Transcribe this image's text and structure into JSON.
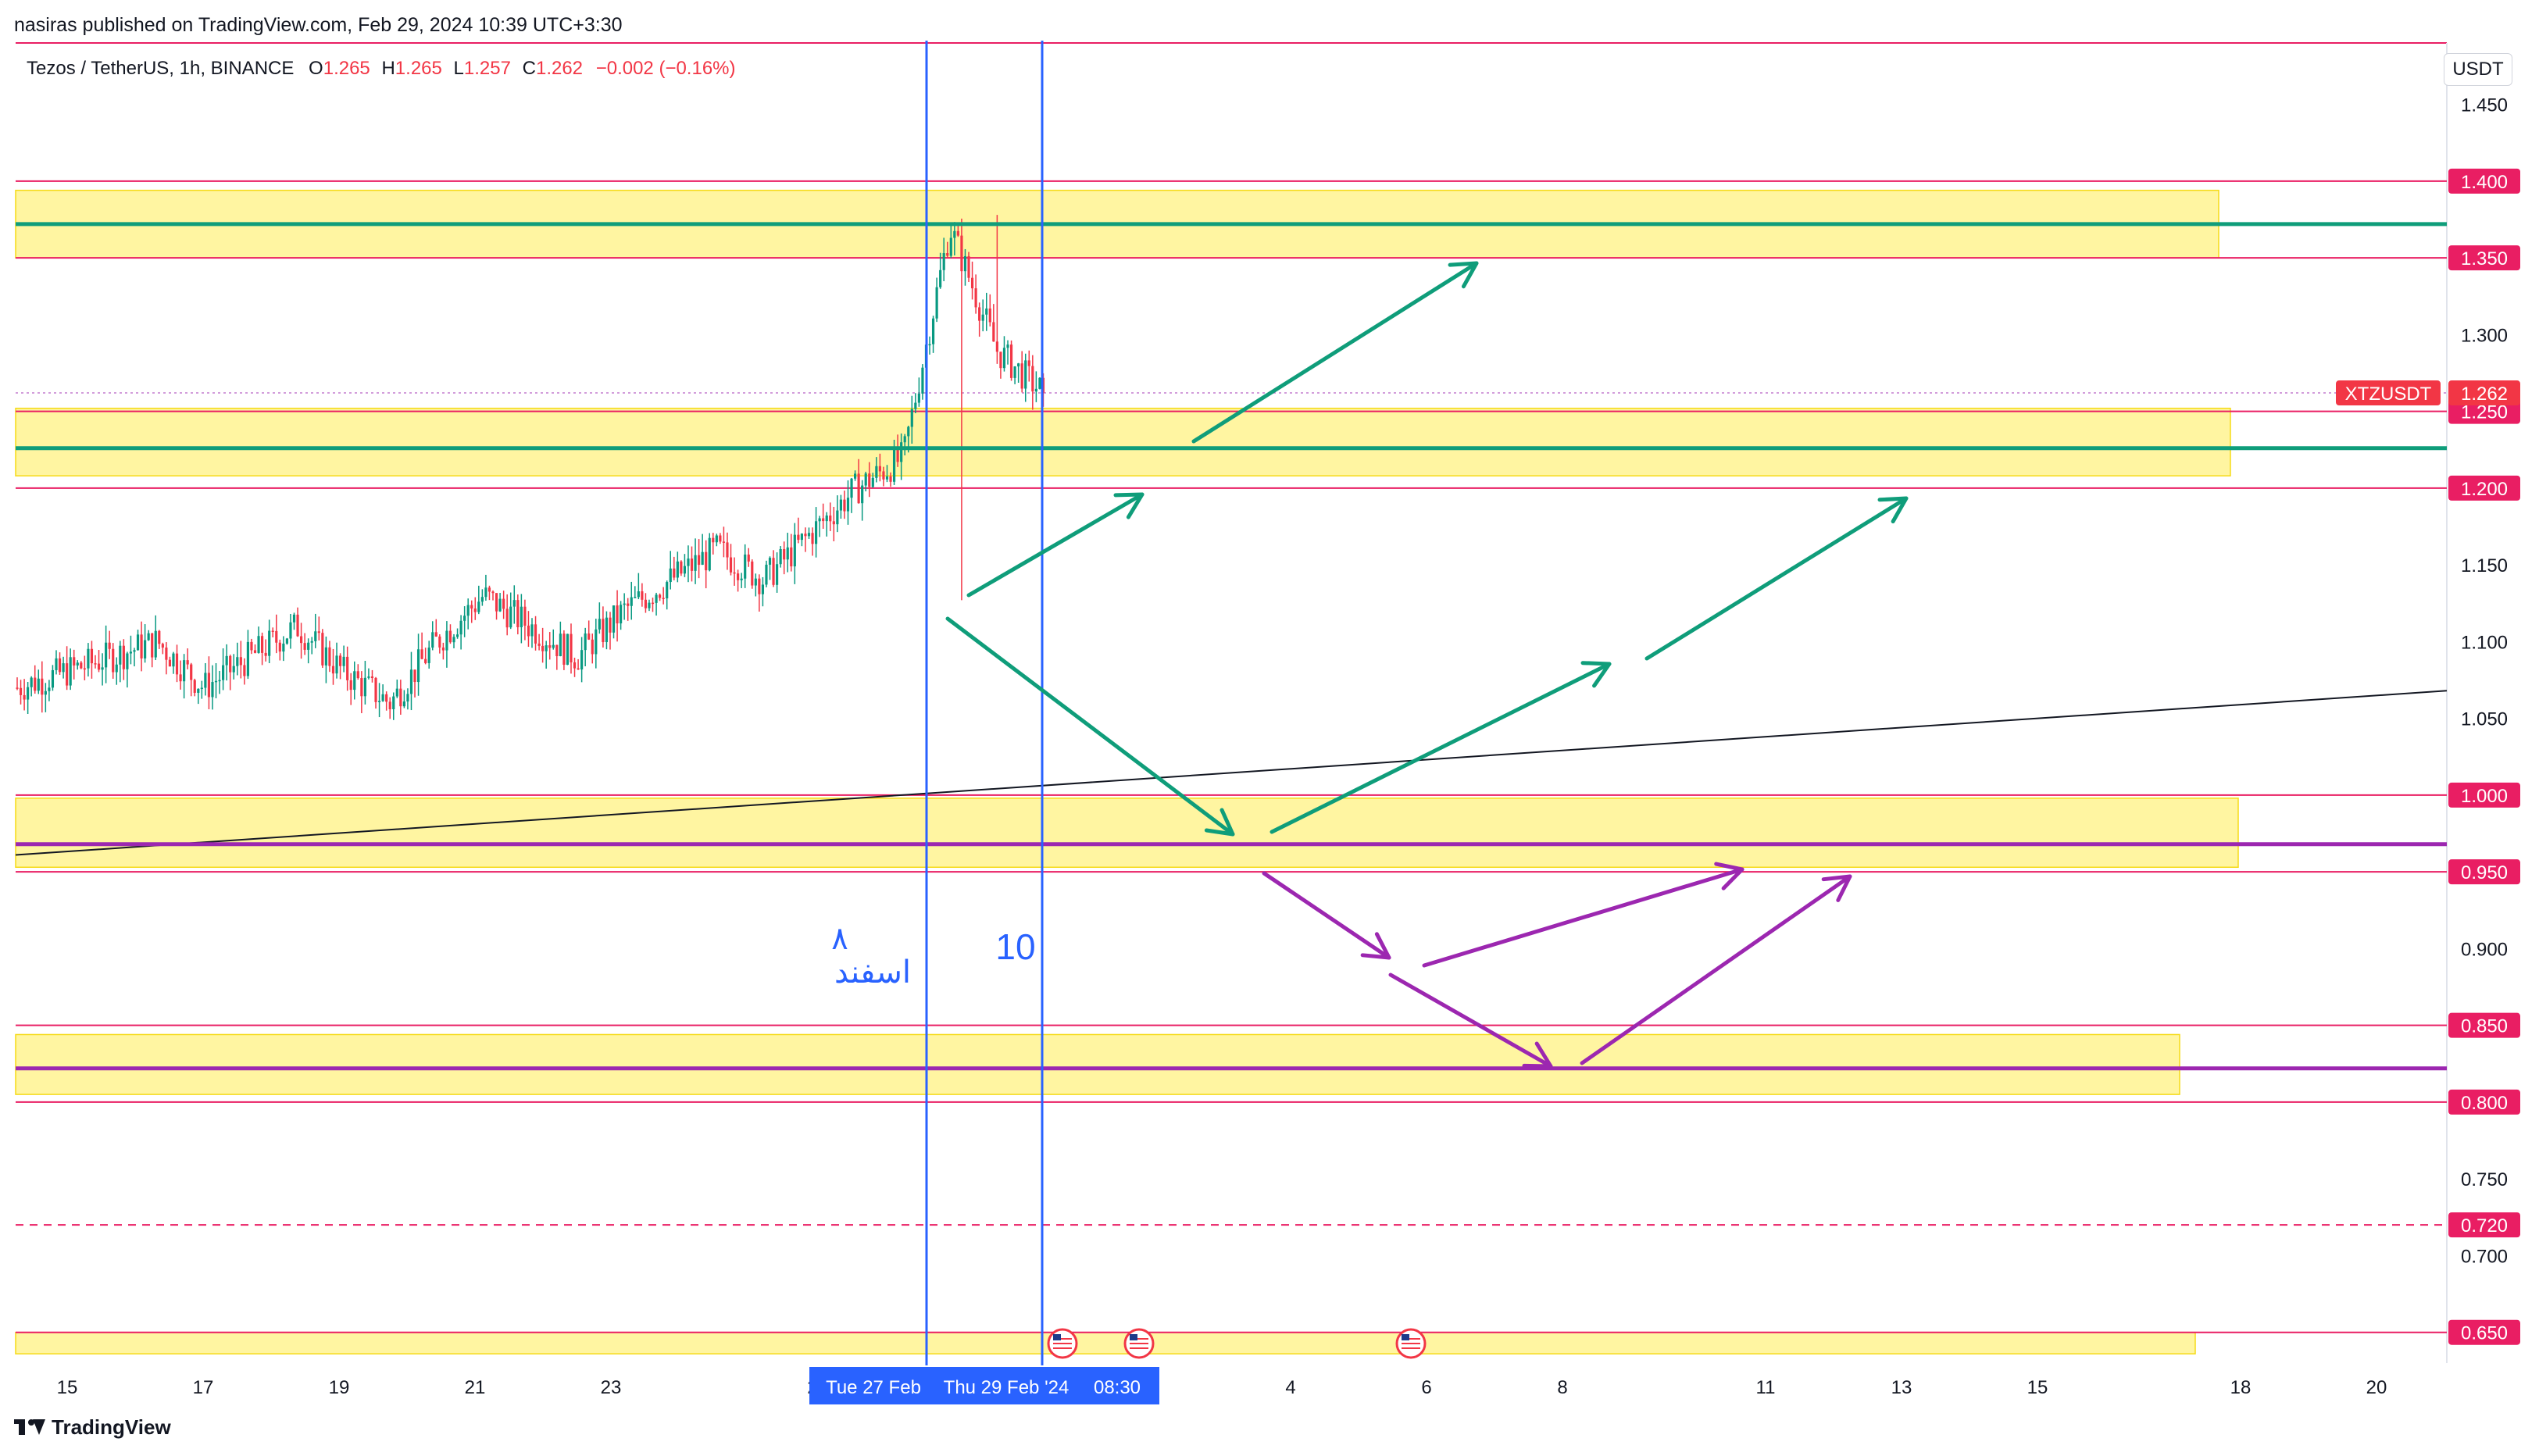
{
  "header": {
    "publisher": "nasiras published on TradingView.com, Feb 29, 2024 10:39 UTC+3:30",
    "symbol": "Tezos / TetherUS, 1h, BINANCE",
    "o_label": "O",
    "o_value": "1.265",
    "h_label": "H",
    "h_value": "1.265",
    "l_label": "L",
    "l_value": "1.257",
    "c_label": "C",
    "c_value": "1.262",
    "change": "−0.002 (−0.16%)"
  },
  "currency": "USDT",
  "footer": {
    "brand": "TradingView"
  },
  "colors": {
    "zone": "#fff59d",
    "level_line": "#e91e63",
    "green": "#0f9d7a",
    "purple": "#9c27b0",
    "blue": "#2962ff",
    "up": "#089981",
    "down": "#f23645",
    "price_tag": "#f23645"
  },
  "chart_data": {
    "type": "candlestick",
    "symbol_tag": "XTZUSDT",
    "last_price": "1.262",
    "y_range": [
      0.63,
      1.49
    ],
    "y_ticks": [
      "1.450",
      "1.300",
      "1.150",
      "1.100",
      "1.050",
      "0.900",
      "0.750",
      "0.700"
    ],
    "x_ticks": [
      "15",
      "17",
      "19",
      "21",
      "23",
      "2",
      "4",
      "6",
      "8",
      "11",
      "13",
      "15",
      "18",
      "20"
    ],
    "x_highlight_labels": [
      "Tue 27 Feb",
      "Thu 29 Feb '24",
      "08:30"
    ],
    "level_labels": [
      "1.400",
      "1.350",
      "1.250",
      "1.200",
      "1.000",
      "0.950",
      "0.850",
      "0.800",
      "0.720",
      "0.650"
    ],
    "zones": [
      {
        "from": 1.35,
        "to": 1.394
      },
      {
        "from": 1.208,
        "to": 1.252
      },
      {
        "from": 0.953,
        "to": 0.998
      },
      {
        "from": 0.805,
        "to": 0.844
      },
      {
        "from": 0.636,
        "to": 0.65
      }
    ],
    "horizontal_lines": [
      {
        "price": 1.372,
        "color": "green"
      },
      {
        "price": 1.226,
        "color": "green"
      },
      {
        "price": 0.968,
        "color": "purple"
      },
      {
        "price": 0.822,
        "color": "purple"
      }
    ],
    "annotations": [
      "۸",
      "اسفند",
      "10"
    ],
    "candles": {
      "start_price": 1.07,
      "closes_sample": [
        1.07,
        1.08,
        1.09,
        1.1,
        1.07,
        1.09,
        1.11,
        1.08,
        1.06,
        1.1,
        1.13,
        1.11,
        1.09,
        1.12,
        1.14,
        1.16,
        1.14,
        1.17,
        1.2,
        1.22,
        1.37,
        1.29,
        1.262
      ]
    }
  }
}
